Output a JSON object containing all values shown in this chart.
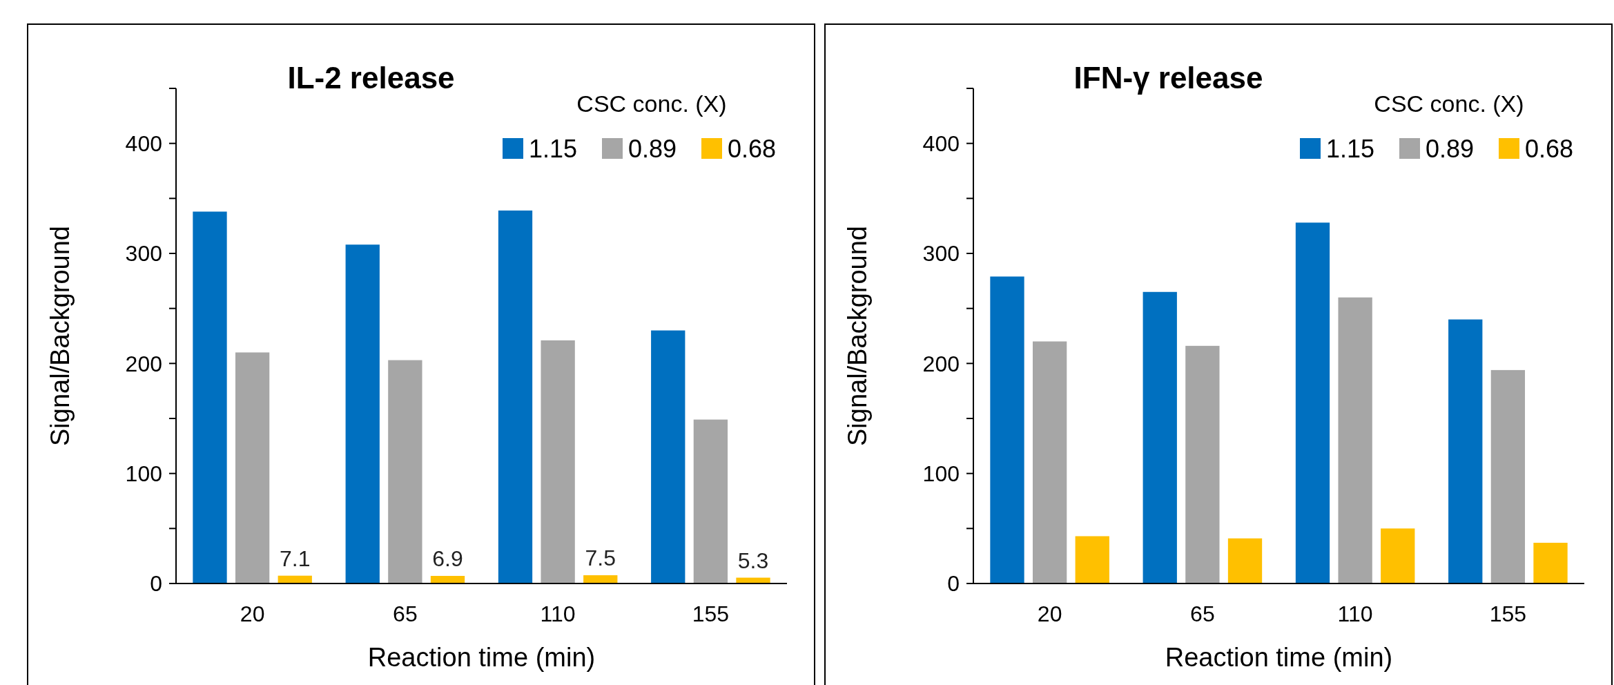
{
  "chart_data": [
    {
      "type": "bar",
      "title": "IL-2 release",
      "xlabel": "Reaction time (min)",
      "ylabel": "Signal/Background",
      "legend_title": "CSC conc. (X)",
      "legend": "top right",
      "categories": [
        "20",
        "65",
        "110",
        "155"
      ],
      "series": [
        {
          "name": "1.15",
          "color": "#0070c0",
          "values": [
            338,
            308,
            339,
            230
          ]
        },
        {
          "name": "0.89",
          "color": "#a6a6a6",
          "values": [
            210,
            203,
            221,
            149
          ]
        },
        {
          "name": "0.68",
          "color": "#ffc000",
          "values": [
            7.1,
            6.9,
            7.5,
            5.3
          ],
          "value_labels": [
            "7.1",
            "6.9",
            "7.5",
            "5.3"
          ]
        }
      ],
      "ylim": [
        0,
        450
      ],
      "yticks": [
        0,
        {
          "value": 50,
          "label": null
        },
        100,
        {
          "value": 150,
          "label": null
        },
        200,
        {
          "value": 250,
          "label": null
        },
        300,
        {
          "value": 350,
          "label": null
        },
        400,
        {
          "value": 450,
          "label": null
        }
      ]
    },
    {
      "type": "bar",
      "title": "IFN-γ release",
      "xlabel": "Reaction time (min)",
      "ylabel": "Signal/Background",
      "legend_title": "CSC conc. (X)",
      "legend": "top right",
      "categories": [
        "20",
        "65",
        "110",
        "155"
      ],
      "series": [
        {
          "name": "1.15",
          "color": "#0070c0",
          "values": [
            279,
            265,
            328,
            240
          ]
        },
        {
          "name": "0.89",
          "color": "#a6a6a6",
          "values": [
            220,
            216,
            260,
            194
          ]
        },
        {
          "name": "0.68",
          "color": "#ffc000",
          "values": [
            43,
            41,
            50,
            37
          ]
        }
      ],
      "ylim": [
        0,
        450
      ],
      "yticks": [
        0,
        {
          "value": 50,
          "label": null
        },
        100,
        {
          "value": 150,
          "label": null
        },
        200,
        {
          "value": 250,
          "label": null
        },
        300,
        {
          "value": 350,
          "label": null
        },
        400,
        {
          "value": 450,
          "label": null
        }
      ]
    }
  ]
}
